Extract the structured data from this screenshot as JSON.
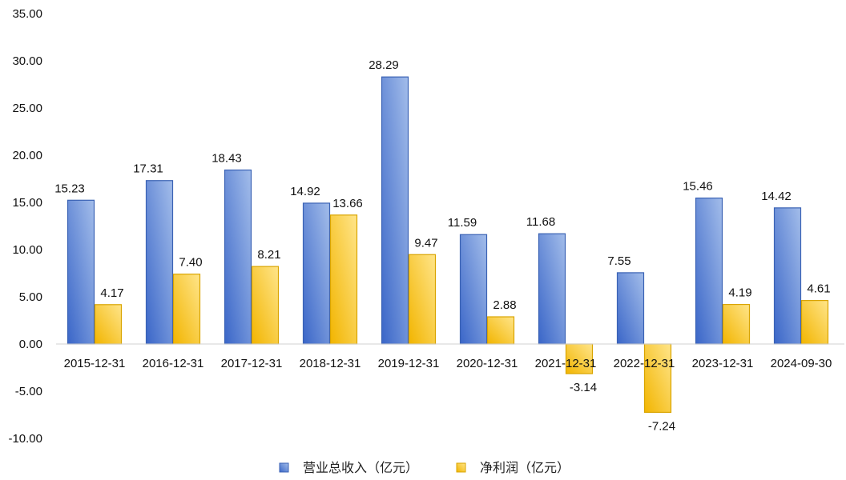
{
  "chart_data": {
    "type": "bar",
    "categories": [
      "2015-12-31",
      "2016-12-31",
      "2017-12-31",
      "2018-12-31",
      "2019-12-31",
      "2020-12-31",
      "2021-12-31",
      "2022-12-31",
      "2023-12-31",
      "2024-09-30"
    ],
    "series": [
      {
        "name": "营业总收入（亿元）",
        "values": [
          15.23,
          17.31,
          18.43,
          14.92,
          28.29,
          11.59,
          11.68,
          7.55,
          15.46,
          14.42
        ],
        "color": "#4472C4"
      },
      {
        "name": "净利润（亿元）",
        "values": [
          4.17,
          7.4,
          8.21,
          13.66,
          9.47,
          2.88,
          -3.14,
          -7.24,
          4.19,
          4.61
        ],
        "color": "#FFC000"
      }
    ],
    "ylim": [
      -10,
      35
    ],
    "yticks": [
      "35.00",
      "30.00",
      "25.00",
      "20.00",
      "15.00",
      "10.00",
      "5.00",
      "0.00",
      "-5.00",
      "-10.00"
    ],
    "data_labels": true,
    "grid": false,
    "legend": "bottom-center"
  }
}
